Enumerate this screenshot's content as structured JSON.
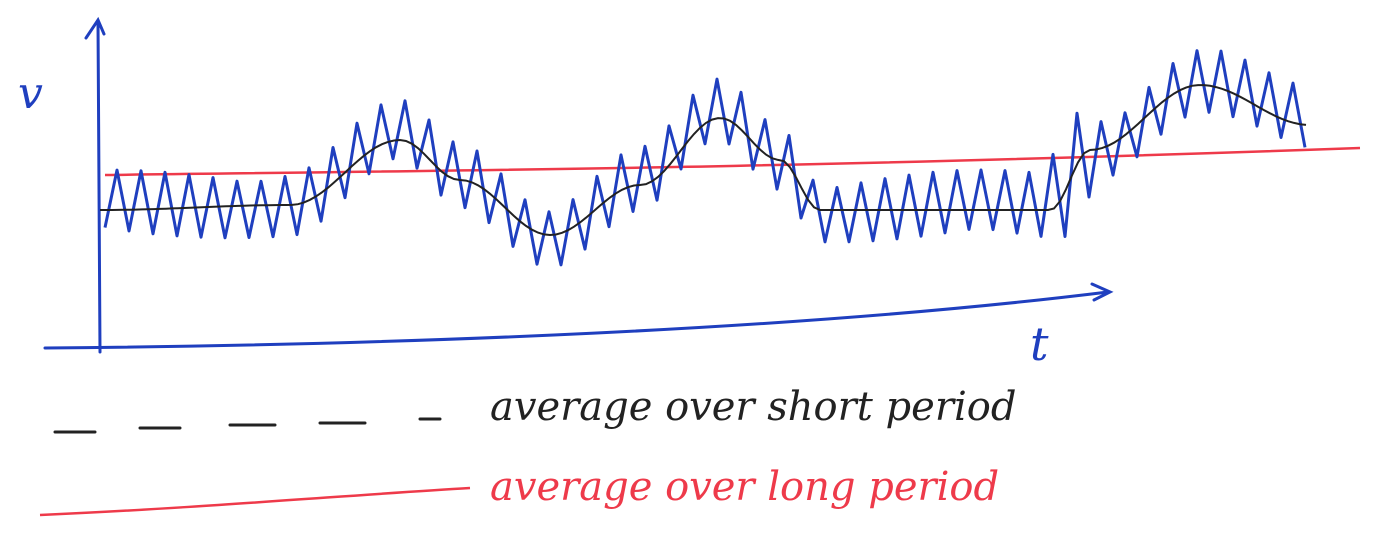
{
  "axes": {
    "y_label": "v",
    "x_label": "t"
  },
  "legend": [
    {
      "label": "average over short period"
    },
    {
      "label": "average over long period"
    }
  ]
}
